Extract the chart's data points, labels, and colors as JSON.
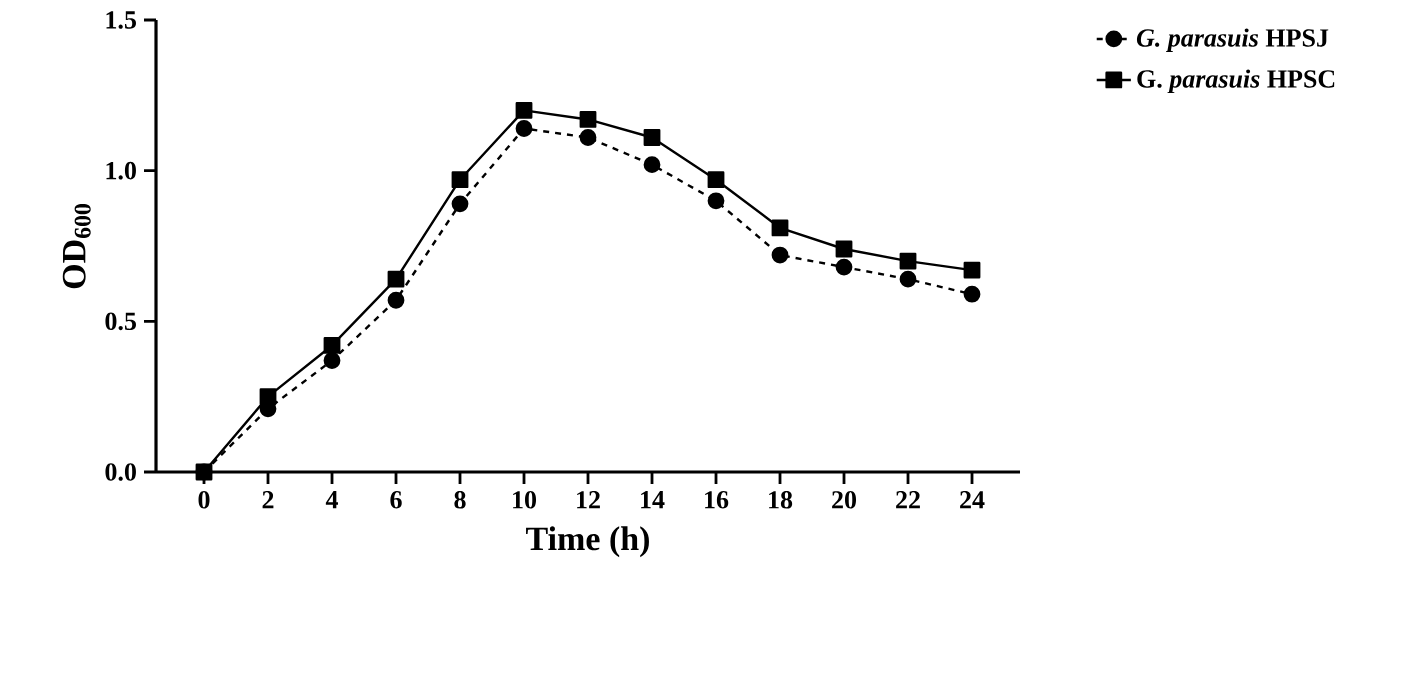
{
  "chart_data": {
    "type": "line",
    "xlabel": "Time (h)",
    "ylabel": "OD$_{600}$",
    "x": [
      0,
      2,
      4,
      6,
      8,
      10,
      12,
      14,
      16,
      18,
      20,
      22,
      24
    ],
    "series": [
      {
        "name": "*G. parasuis* HPSJ",
        "color": "#000000",
        "marker": "circle",
        "line_style": "dashed",
        "values": [
          0,
          0.21,
          0.37,
          0.57,
          0.89,
          1.14,
          1.11,
          1.02,
          0.9,
          0.72,
          0.68,
          0.64,
          0.59
        ]
      },
      {
        "name": "G. *parasuis* HPSC",
        "color": "#000000",
        "marker": "square",
        "line_style": "solid",
        "values": [
          0,
          0.25,
          0.42,
          0.64,
          0.97,
          1.2,
          1.17,
          1.11,
          0.97,
          0.81,
          0.74,
          0.7,
          0.67
        ]
      }
    ],
    "xlim": [
      -1.5,
      25.5
    ],
    "ylim": [
      0,
      1.5
    ],
    "xticks": [
      0,
      2,
      4,
      6,
      8,
      10,
      12,
      14,
      16,
      18,
      20,
      22,
      24
    ],
    "yticks": [
      {
        "value": 0,
        "label": "0.0"
      },
      {
        "value": 0.5,
        "label": "0.5"
      },
      {
        "value": 1.0,
        "label": "1.0"
      },
      {
        "value": 1.5,
        "label": "1.5"
      }
    ],
    "grid": false,
    "legend": "top right"
  }
}
